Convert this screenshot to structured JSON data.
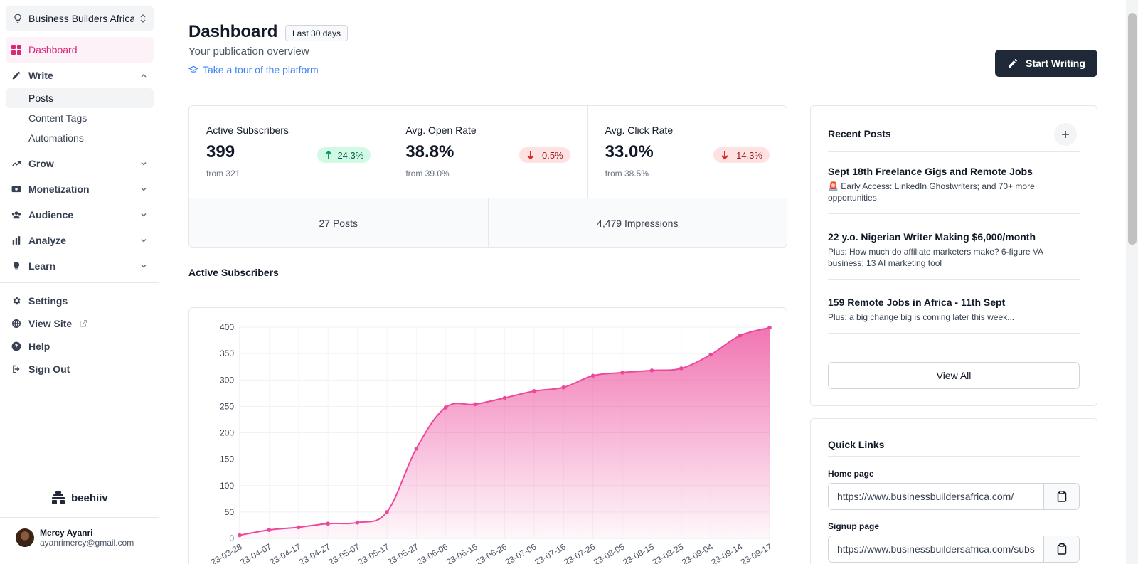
{
  "workspace": {
    "name": "Business Builders Africa"
  },
  "sidebar": {
    "items": [
      {
        "label": "Dashboard",
        "icon": "grid-icon"
      },
      {
        "label": "Write",
        "icon": "pencil-icon",
        "sub": [
          "Posts",
          "Content Tags",
          "Automations"
        ]
      },
      {
        "label": "Grow",
        "icon": "trend-up-icon"
      },
      {
        "label": "Monetization",
        "icon": "money-icon"
      },
      {
        "label": "Audience",
        "icon": "users-icon"
      },
      {
        "label": "Analyze",
        "icon": "bar-chart-icon"
      },
      {
        "label": "Learn",
        "icon": "lightbulb-icon"
      }
    ],
    "bottom": [
      {
        "label": "Settings",
        "icon": "gear-icon"
      },
      {
        "label": "View Site",
        "icon": "globe-icon"
      },
      {
        "label": "Help",
        "icon": "help-icon"
      },
      {
        "label": "Sign Out",
        "icon": "sign-out-icon"
      }
    ],
    "brand": "beehiiv",
    "user": {
      "name": "Mercy Ayanri",
      "email": "ayanrimercy@gmail.com"
    }
  },
  "header": {
    "title": "Dashboard",
    "period": "Last 30 days",
    "subtitle": "Your publication overview",
    "tour": "Take a tour of the platform",
    "cta": "Start Writing"
  },
  "stats": [
    {
      "label": "Active Subscribers",
      "value": "399",
      "delta": "24.3%",
      "direction": "up",
      "from": "from 321"
    },
    {
      "label": "Avg. Open Rate",
      "value": "38.8%",
      "delta": "-0.5%",
      "direction": "down",
      "from": "from 39.0%"
    },
    {
      "label": "Avg. Click Rate",
      "value": "33.0%",
      "delta": "-14.3%",
      "direction": "down",
      "from": "from 38.5%"
    }
  ],
  "totals": {
    "posts": "27 Posts",
    "impressions": "4,479 Impressions"
  },
  "chart_section_title": "Active Subscribers",
  "chart_data": {
    "type": "area",
    "x": [
      "2023-03-28",
      "2023-04-07",
      "2023-04-17",
      "2023-04-27",
      "2023-05-07",
      "2023-05-17",
      "2023-05-27",
      "2023-06-06",
      "2023-06-16",
      "2023-06-26",
      "2023-07-06",
      "2023-07-16",
      "2023-07-26",
      "2023-08-05",
      "2023-08-15",
      "2023-08-25",
      "2023-09-04",
      "2023-09-14",
      "2023-09-17"
    ],
    "tick_labels": [
      "23-03-28",
      "23-04-07",
      "23-04-17",
      "23-04-27",
      "23-05-07",
      "23-05-17",
      "23-05-27",
      "23-06-06",
      "23-06-16",
      "23-06-26",
      "23-07-06",
      "23-07-16",
      "23-07-26",
      "23-08-05",
      "23-08-15",
      "23-08-25",
      "23-09-04",
      "23-09-14",
      "23-09-17"
    ],
    "series": [
      {
        "values": [
          6,
          16,
          21,
          28,
          30,
          50,
          170,
          248,
          254,
          266,
          279,
          286,
          308,
          314,
          318,
          322,
          348,
          384,
          399
        ]
      }
    ],
    "ylim": [
      0,
      400
    ],
    "yticks": [
      0,
      50,
      100,
      150,
      200,
      250,
      300,
      350,
      400
    ],
    "grid": true,
    "color": "#ec4899"
  },
  "recent_posts": {
    "title": "Recent Posts",
    "items": [
      {
        "title": "Sept 18th Freelance Gigs and Remote Jobs",
        "sub": "🚨 Early Access: LinkedIn Ghostwriters; and 70+ more opportunities"
      },
      {
        "title": "22 y.o. Nigerian Writer Making $6,000/month",
        "sub": "Plus: How much do affiliate marketers make? 6-figure VA business; 13 AI marketing tool"
      },
      {
        "title": "159 Remote Jobs in Africa - 11th Sept",
        "sub": "Plus: a big change big is coming later this week..."
      }
    ],
    "view_all": "View All"
  },
  "quick_links": {
    "title": "Quick Links",
    "home_label": "Home page",
    "home_url": "https://www.businessbuildersafrica.com/",
    "signup_label": "Signup page",
    "signup_url": "https://www.businessbuildersafrica.com/subscribe"
  },
  "colors": {
    "accent": "#db2777",
    "dark": "#1f2937",
    "up": "#065f46",
    "down": "#991b1b"
  }
}
